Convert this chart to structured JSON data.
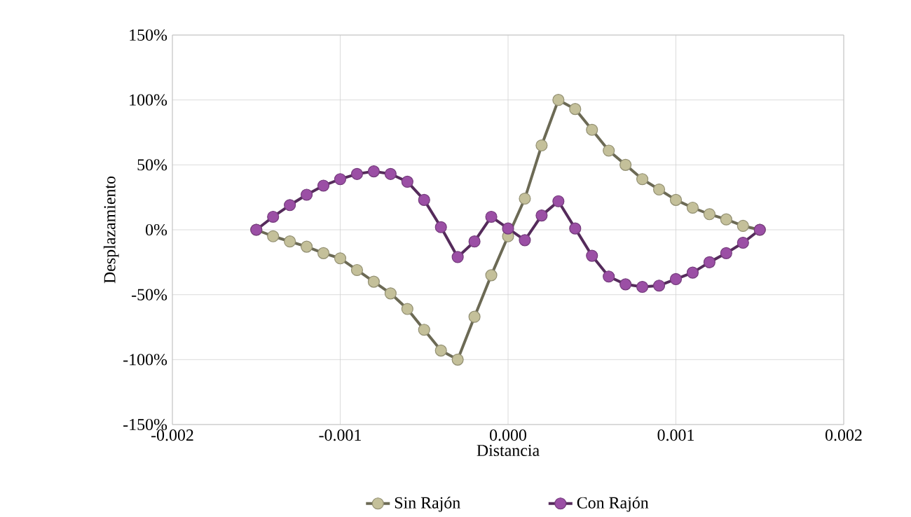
{
  "chart_data": {
    "type": "line",
    "xlabel": "Distancia",
    "ylabel": "Desplazamiento",
    "xlim": [
      -0.002,
      0.002
    ],
    "ylim": [
      -150,
      150
    ],
    "xticks": [
      {
        "value": -0.002,
        "label": "-0.002"
      },
      {
        "value": -0.001,
        "label": "-0.001"
      },
      {
        "value": 0,
        "label": "0.000"
      },
      {
        "value": 0.001,
        "label": "0.001"
      },
      {
        "value": 0.002,
        "label": "0.002"
      }
    ],
    "yticks": [
      {
        "value": -150,
        "label": "-150%"
      },
      {
        "value": -100,
        "label": "-100%"
      },
      {
        "value": -50,
        "label": "-50%"
      },
      {
        "value": 0,
        "label": "0%"
      },
      {
        "value": 50,
        "label": "50%"
      },
      {
        "value": 100,
        "label": "100%"
      },
      {
        "value": 150,
        "label": "150%"
      }
    ],
    "grid": true,
    "legend": "bottom",
    "marker": "circle",
    "line_style": "solid",
    "x": [
      -0.0015,
      -0.0014,
      -0.0013,
      -0.0012,
      -0.0011,
      -0.001,
      -0.0009,
      -0.0008,
      -0.0007,
      -0.0006,
      -0.0005,
      -0.0004,
      -0.0003,
      -0.0002,
      -0.0001,
      0,
      0.0001,
      0.0002,
      0.0003,
      0.0004,
      0.0005,
      0.0006,
      0.0007,
      0.0008,
      0.0009,
      0.001,
      0.0011,
      0.0012,
      0.0013,
      0.0014,
      0.0015
    ],
    "series": [
      {
        "name": "Sin Rajón",
        "color": "#c4c09a",
        "values": [
          0,
          -5,
          -9,
          -13,
          -18,
          -22,
          -31,
          -40,
          -49,
          -61,
          -77,
          -93,
          -100,
          -67,
          -35,
          -5,
          24,
          65,
          100,
          93,
          77,
          61,
          50,
          39,
          31,
          23,
          17,
          12,
          8,
          3,
          0
        ]
      },
      {
        "name": "Con Rajón",
        "color": "#9b4fa5",
        "values": [
          0,
          10,
          19,
          27,
          34,
          39,
          43,
          45,
          43,
          37,
          23,
          2,
          -21,
          -9,
          10,
          1,
          -8,
          11,
          22,
          1,
          -20,
          -36,
          -42,
          -44,
          -43,
          -38,
          -33,
          -25,
          -18,
          -10,
          0
        ]
      }
    ]
  }
}
